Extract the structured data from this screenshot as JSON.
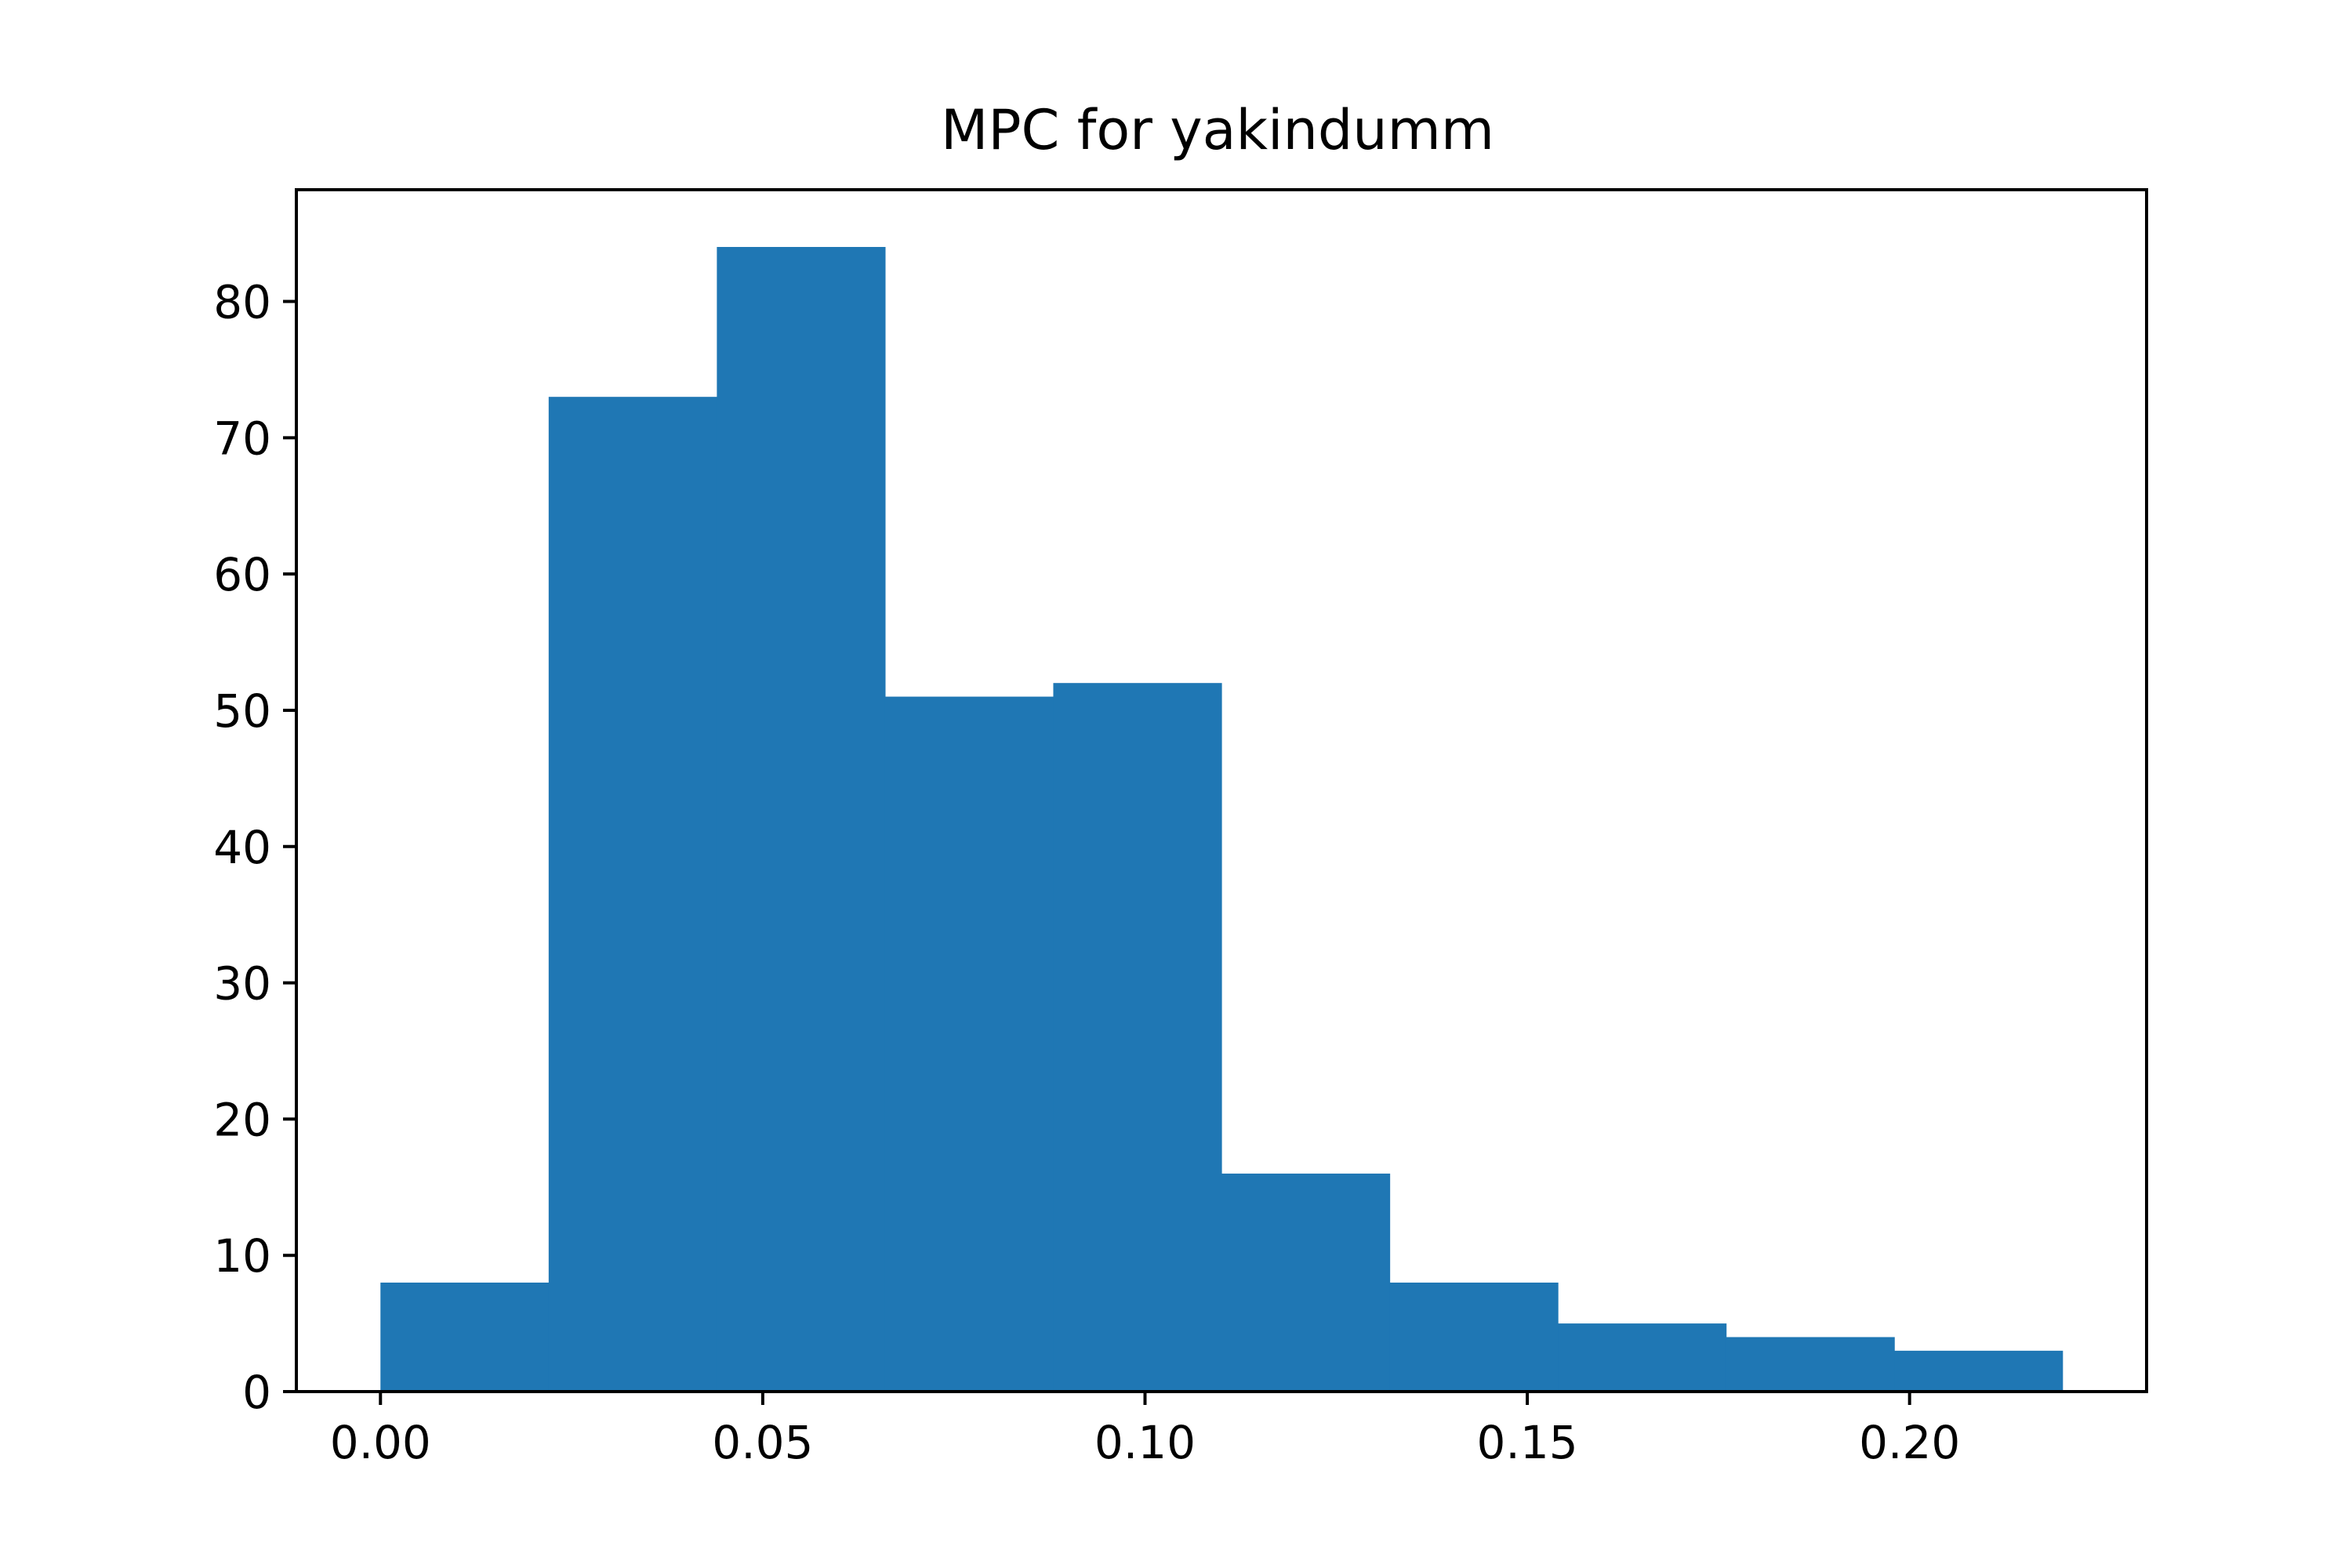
{
  "chart_data": {
    "type": "bar",
    "title": "MPC for yakindumm",
    "xlabel": "",
    "ylabel": "",
    "bin_edges": [
      0.0,
      0.022,
      0.044,
      0.066,
      0.088,
      0.11,
      0.132,
      0.154,
      0.176,
      0.198,
      0.22
    ],
    "values": [
      8,
      73,
      84,
      51,
      52,
      16,
      8,
      5,
      4,
      3
    ],
    "xlim": [
      -0.011,
      0.231
    ],
    "ylim": [
      0,
      88.2
    ],
    "x_ticks": [
      0.0,
      0.05,
      0.1,
      0.15,
      0.2
    ],
    "x_tick_labels": [
      "0.00",
      "0.05",
      "0.10",
      "0.15",
      "0.20"
    ],
    "y_ticks": [
      0,
      10,
      20,
      30,
      40,
      50,
      60,
      70,
      80
    ],
    "y_tick_labels": [
      "0",
      "10",
      "20",
      "30",
      "40",
      "50",
      "60",
      "70",
      "80"
    ],
    "grid": false,
    "legend": "none",
    "bar_color": "#1f77b4"
  }
}
